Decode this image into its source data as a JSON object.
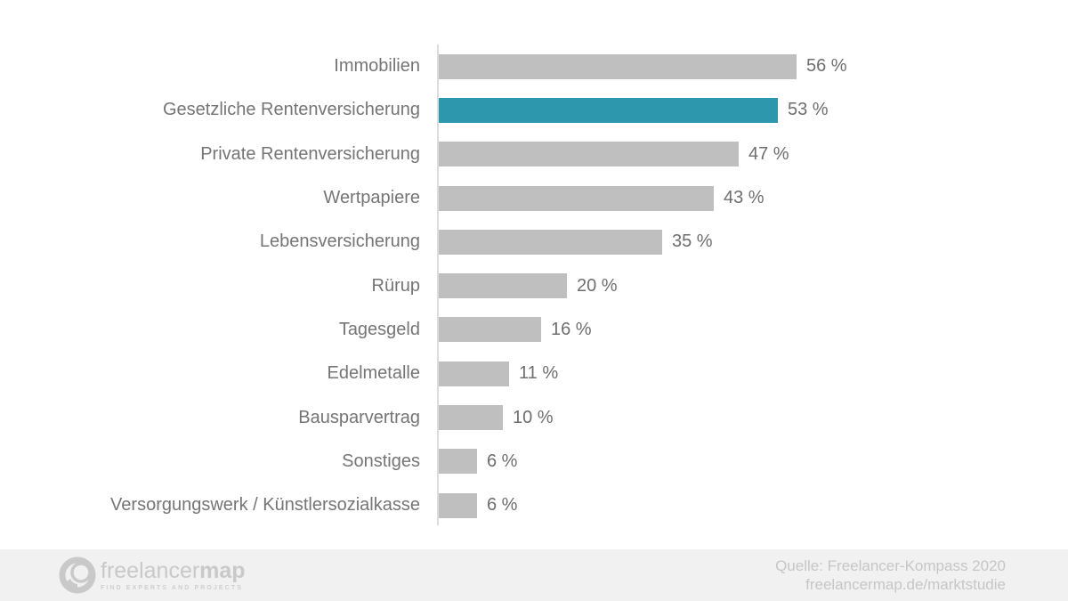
{
  "chart_data": {
    "type": "bar",
    "orientation": "horizontal",
    "categories": [
      "Immobilien",
      "Gesetzliche Rentenversicherung",
      "Private Rentenversicherung",
      "Wertpapiere",
      "Lebensversicherung",
      "Rürup",
      "Tagesgeld",
      "Edelmetalle",
      "Bausparvertrag",
      "Sonstiges",
      "Versorgungswerk / Künstlersozialkasse"
    ],
    "values": [
      56,
      53,
      47,
      43,
      35,
      20,
      16,
      11,
      10,
      6,
      6
    ],
    "value_suffix": " %",
    "highlight_index": 1,
    "highlighted_category": "Gesetzliche Rentenversicherung",
    "title": "",
    "xlabel": "",
    "ylabel": "",
    "xlim": [
      0,
      60
    ],
    "grid": false,
    "legend": false,
    "colors": {
      "bar": "#bfbfbf",
      "highlight": "#2d98ad",
      "axis": "#dcdcdc",
      "category_label": "#757575",
      "value_label": "#6e6e6e"
    }
  },
  "footer": {
    "logo": {
      "brand_light": "freelancer",
      "brand_bold": "map",
      "tagline": "FIND EXPERTS AND PROJECTS"
    },
    "source_line1": "Quelle: Freelancer-Kompass 2020",
    "source_line2": "freelancermap.de/marktstudie"
  }
}
